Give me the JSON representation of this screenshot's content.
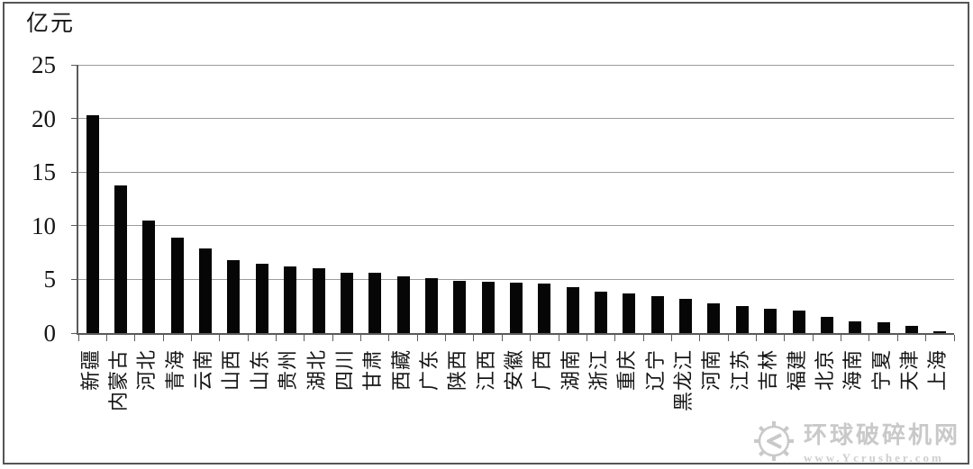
{
  "unit_label": "亿元",
  "watermark": {
    "site_name": "环球破碎机网",
    "url": "www.Ycrusher.com"
  },
  "chart_data": {
    "type": "bar",
    "title": "",
    "xlabel": "",
    "ylabel": "亿元",
    "ylim": [
      0,
      25
    ],
    "yticks": [
      0,
      5,
      10,
      15,
      20,
      25
    ],
    "grid": true,
    "legend": "none",
    "bar_color": "#060606",
    "categories": [
      "新疆",
      "内蒙古",
      "河北",
      "青海",
      "云南",
      "山西",
      "山东",
      "贵州",
      "湖北",
      "四川",
      "甘肃",
      "西藏",
      "广东",
      "陕西",
      "江西",
      "安徽",
      "广西",
      "湖南",
      "浙江",
      "重庆",
      "辽宁",
      "黑龙江",
      "河南",
      "江苏",
      "吉林",
      "福建",
      "北京",
      "海南",
      "宁夏",
      "天津",
      "上海"
    ],
    "values": [
      20.3,
      13.8,
      10.5,
      8.9,
      7.9,
      6.8,
      6.5,
      6.2,
      6.0,
      5.6,
      5.6,
      5.3,
      5.1,
      4.9,
      4.8,
      4.7,
      4.6,
      4.3,
      3.9,
      3.7,
      3.4,
      3.2,
      2.8,
      2.5,
      2.3,
      2.1,
      1.5,
      1.1,
      1.0,
      0.7,
      0.2
    ]
  }
}
